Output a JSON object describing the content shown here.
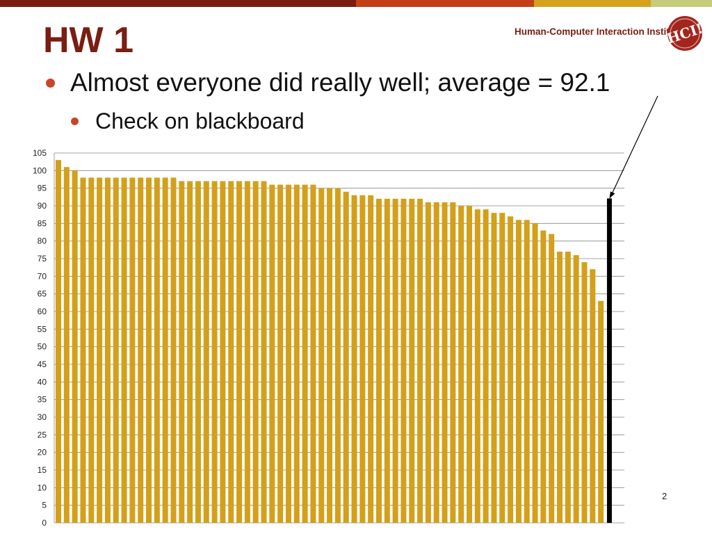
{
  "header": {
    "title": "HW 1",
    "logo_text": "Human-Computer Interaction Institute",
    "logo_badge_text": "HCI!",
    "band_colors": [
      "#7b1c10",
      "#c43f17",
      "#d4a21d",
      "#c5cc7a"
    ]
  },
  "bullets": [
    {
      "text": "Almost everyone did really well; average = 92.1",
      "level": 1
    },
    {
      "text": "Check on blackboard",
      "level": 2
    }
  ],
  "page_number": "2",
  "colors": {
    "title": "#7a1d12",
    "bullet": "#c9452a",
    "bar": "#d4a019",
    "average_bar": "#000000",
    "grid": "#888888"
  },
  "chart_data": {
    "type": "bar",
    "title": "",
    "xlabel": "",
    "ylabel": "",
    "ylim": [
      0,
      105
    ],
    "ytick_step": 5,
    "grid": true,
    "values": [
      103,
      101,
      100,
      98,
      98,
      98,
      98,
      98,
      98,
      98,
      98,
      98,
      98,
      98,
      98,
      97,
      97,
      97,
      97,
      97,
      97,
      97,
      97,
      97,
      97,
      97,
      96,
      96,
      96,
      96,
      96,
      96,
      95,
      95,
      95,
      94,
      93,
      93,
      93,
      92,
      92,
      92,
      92,
      92,
      92,
      91,
      91,
      91,
      91,
      90,
      90,
      89,
      89,
      88,
      88,
      87,
      86,
      86,
      85,
      83,
      82,
      77,
      77,
      76,
      74,
      72,
      63,
      92.1
    ],
    "highlight_index": 67,
    "annotation": {
      "target_index": 67,
      "value": 92.1
    }
  }
}
